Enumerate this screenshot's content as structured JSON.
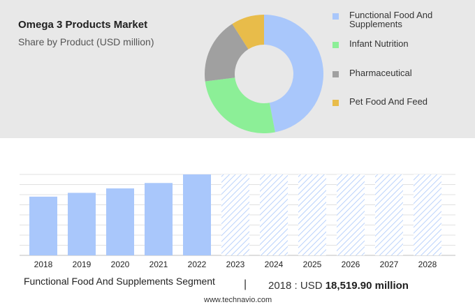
{
  "header": {
    "title": "Omega 3 Products Market",
    "subtitle": "Share by Product (USD million)"
  },
  "legend": [
    {
      "label": "Functional Food And Supplements",
      "color": "#a9c7fb"
    },
    {
      "label": "Infant Nutrition",
      "color": "#8cef97"
    },
    {
      "label": "Pharmaceutical",
      "color": "#a0a0a0"
    },
    {
      "label": "Pet Food And Feed",
      "color": "#e8bc4a"
    }
  ],
  "footer": {
    "segment": "Functional Food And Supplements Segment",
    "divider": "|",
    "stat_prefix": "2018 : USD",
    "stat_value": "18,519.90 million",
    "source": "www.technavio.com"
  },
  "chart_data": [
    {
      "type": "pie",
      "categories": [
        "Functional Food And Supplements",
        "Infant Nutrition",
        "Pharmaceutical",
        "Pet Food And Feed"
      ],
      "values": [
        47,
        26,
        18,
        9
      ],
      "colors": [
        "#a9c7fb",
        "#8cef97",
        "#a0a0a0",
        "#e8bc4a"
      ],
      "legend": "right"
    },
    {
      "type": "bar",
      "categories": [
        "2018",
        "2019",
        "2020",
        "2021",
        "2022",
        "2023",
        "2024",
        "2025",
        "2026",
        "2027",
        "2028"
      ],
      "values": [
        18.5,
        19.7,
        21.1,
        22.8,
        25.5,
        25.5,
        25.5,
        25.5,
        25.5,
        25.5,
        25.5
      ],
      "forecast_from": "2023",
      "ylim": [
        0,
        25.5
      ],
      "grid": true,
      "colors": {
        "actual": "#a9c7fb",
        "forecast": "#a9c7fb"
      }
    }
  ]
}
